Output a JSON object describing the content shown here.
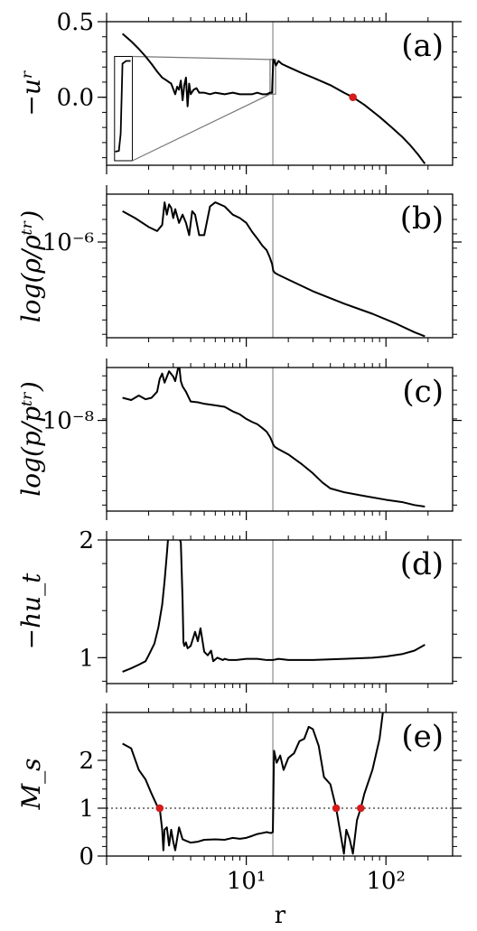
{
  "colors": {
    "line": "#000000",
    "vline": "#a8a8a8",
    "marker": "#d41c1c",
    "dotted": "#6e6e6e",
    "zoom": "#777777"
  },
  "xaxis": {
    "label": "r",
    "scale": "log",
    "range": [
      1.0,
      300.0
    ],
    "tick_labels": [
      "10¹",
      "10²"
    ]
  },
  "chart_data": [
    {
      "type": "line",
      "panel_label": "(a)",
      "ylabel": "−uʳ",
      "xlim": [
        1.0,
        300.0
      ],
      "ylim": [
        -0.45,
        0.5
      ],
      "x_scale": "log",
      "y_ticks": [
        0.5,
        0.0
      ],
      "y_tick_labels": [
        "0.5",
        "0.0"
      ],
      "vline_x": 15.5,
      "markers": [
        {
          "x": 58,
          "y": 0.0
        }
      ],
      "inset_box": {
        "x_range": [
          1.14,
          1.53
        ],
        "y_range": [
          -0.42,
          0.27
        ]
      },
      "inset_target": {
        "x_range": [
          14.8,
          16.2
        ],
        "y_range": [
          0.02,
          0.25
        ]
      },
      "series": [
        {
          "x": [
            1.3,
            1.5,
            1.7,
            1.9,
            2.1,
            2.3,
            2.5,
            2.7,
            2.9,
            3.1,
            3.2,
            3.3,
            3.4,
            3.5,
            3.6,
            3.7,
            3.8,
            3.9,
            4.0,
            4.2,
            4.4,
            4.6,
            5,
            5.5,
            6,
            7,
            8,
            9,
            10,
            11,
            12,
            13,
            14,
            14.8,
            15.3,
            15.6,
            15.9,
            16.3,
            17,
            18,
            20,
            25,
            30,
            40,
            50,
            58,
            70,
            90,
            110,
            130,
            150,
            170,
            190
          ],
          "y": [
            0.42,
            0.37,
            0.32,
            0.27,
            0.22,
            0.17,
            0.13,
            0.11,
            0.09,
            0.02,
            0.07,
            0.05,
            0.11,
            -0.02,
            0.08,
            0.13,
            -0.06,
            0.09,
            0.02,
            0.05,
            0.06,
            0.03,
            0.03,
            0.02,
            0.03,
            0.02,
            0.03,
            0.02,
            0.02,
            0.02,
            0.03,
            0.02,
            0.02,
            0.03,
            0.03,
            0.25,
            0.24,
            0.21,
            0.24,
            0.22,
            0.2,
            0.16,
            0.13,
            0.08,
            0.03,
            0.0,
            -0.05,
            -0.13,
            -0.2,
            -0.26,
            -0.32,
            -0.38,
            -0.44
          ]
        }
      ]
    },
    {
      "type": "line",
      "panel_label": "(b)",
      "ylabel": "log(ρ/ρᵗʳ)",
      "xlim": [
        1.0,
        300.0
      ],
      "ylim": [
        -7.4,
        -5.3
      ],
      "x_scale": "log",
      "y_ticks": [
        -6
      ],
      "y_tick_labels": [
        "10⁻⁶"
      ],
      "vline_x": 15.5,
      "series": [
        {
          "x": [
            1.3,
            1.6,
            2.0,
            2.3,
            2.5,
            2.6,
            2.7,
            2.8,
            2.9,
            3.0,
            3.1,
            3.3,
            3.5,
            3.7,
            3.9,
            4.1,
            4.3,
            4.6,
            5,
            5.5,
            6,
            7,
            8,
            9,
            10,
            11,
            12,
            13,
            14,
            14.7,
            15.3,
            15.6,
            16,
            17,
            20,
            30,
            50,
            80,
            120,
            160,
            190
          ],
          "y": [
            -5.55,
            -5.65,
            -5.78,
            -5.84,
            -5.75,
            -5.42,
            -5.6,
            -5.45,
            -5.5,
            -5.65,
            -5.52,
            -5.72,
            -5.6,
            -5.72,
            -5.9,
            -5.55,
            -5.6,
            -5.9,
            -5.9,
            -5.48,
            -5.42,
            -5.48,
            -5.6,
            -5.65,
            -5.72,
            -5.85,
            -5.95,
            -6.05,
            -6.12,
            -6.22,
            -6.32,
            -6.42,
            -6.45,
            -6.48,
            -6.55,
            -6.72,
            -6.9,
            -7.05,
            -7.2,
            -7.32,
            -7.38
          ]
        }
      ]
    },
    {
      "type": "line",
      "panel_label": "(c)",
      "ylabel": "log(p/pᵗʳ)",
      "xlim": [
        1.0,
        300.0
      ],
      "ylim": [
        -9.2,
        -7.3
      ],
      "x_scale": "log",
      "y_ticks": [
        -8
      ],
      "y_tick_labels": [
        "10⁻⁸"
      ],
      "vline_x": 15.5,
      "series": [
        {
          "x": [
            1.3,
            1.5,
            1.7,
            1.9,
            2.1,
            2.3,
            2.4,
            2.5,
            2.6,
            2.8,
            3.0,
            3.1,
            3.3,
            3.4,
            3.5,
            3.7,
            4.0,
            4.5,
            5,
            6,
            7,
            8,
            9,
            10,
            11,
            12,
            13,
            14,
            14.8,
            15.3,
            15.6,
            16,
            17,
            20,
            25,
            30,
            35,
            40,
            50,
            70,
            100,
            130,
            160,
            190
          ],
          "y": [
            -7.7,
            -7.73,
            -7.67,
            -7.72,
            -7.7,
            -7.62,
            -7.45,
            -7.38,
            -7.5,
            -7.35,
            -7.42,
            -7.48,
            -7.25,
            -7.48,
            -7.55,
            -7.62,
            -7.75,
            -7.76,
            -7.78,
            -7.8,
            -7.82,
            -7.88,
            -7.92,
            -7.98,
            -8.02,
            -8.05,
            -8.1,
            -8.15,
            -8.22,
            -8.28,
            -8.32,
            -8.35,
            -8.38,
            -8.45,
            -8.58,
            -8.7,
            -8.82,
            -8.9,
            -8.95,
            -9.0,
            -9.05,
            -9.08,
            -9.12,
            -9.14
          ]
        }
      ]
    },
    {
      "type": "line",
      "panel_label": "(d)",
      "ylabel": "−hu_t",
      "xlim": [
        1.0,
        300.0
      ],
      "ylim": [
        0.78,
        2.0
      ],
      "x_scale": "log",
      "y_ticks": [
        2,
        1
      ],
      "y_tick_labels": [
        "2",
        "1"
      ],
      "vline_x": 15.5,
      "series": [
        {
          "x": [
            1.3,
            1.5,
            1.7,
            1.9,
            2.0,
            2.2,
            2.35,
            2.5,
            2.6,
            2.7,
            2.75,
            2.8,
            3.3,
            3.4,
            3.5,
            3.55,
            3.6,
            3.7,
            3.8,
            4.0,
            4.3,
            4.5,
            4.7,
            5,
            5.3,
            5.6,
            5.8,
            6.2,
            6.8,
            7,
            7.5,
            8.5,
            10,
            12,
            14,
            15.5,
            17,
            20,
            30,
            50,
            80,
            100,
            130,
            160,
            190
          ],
          "y": [
            0.88,
            0.91,
            0.94,
            0.97,
            1.02,
            1.12,
            1.26,
            1.45,
            1.65,
            1.88,
            2.0,
            2.02,
            2.02,
            1.98,
            1.48,
            1.13,
            1.1,
            1.13,
            1.08,
            1.1,
            1.22,
            1.14,
            1.25,
            1.05,
            1.02,
            1.06,
            0.97,
            1.0,
            0.98,
            0.99,
            0.98,
            0.98,
            0.99,
            0.99,
            0.98,
            0.98,
            0.99,
            0.98,
            0.98,
            0.99,
            1.0,
            1.01,
            1.03,
            1.06,
            1.11
          ]
        }
      ]
    },
    {
      "type": "line",
      "panel_label": "(e)",
      "ylabel": "M_s",
      "xlim": [
        1.0,
        300.0
      ],
      "ylim": [
        0.0,
        3.0
      ],
      "x_scale": "log",
      "y_ticks": [
        2,
        1,
        0
      ],
      "y_tick_labels": [
        "2",
        "1",
        "0"
      ],
      "vline_x": 15.5,
      "hline_y": 1.0,
      "markers": [
        {
          "x": 2.4,
          "y": 1.0
        },
        {
          "x": 44,
          "y": 1.0
        },
        {
          "x": 66,
          "y": 1.0
        }
      ],
      "series": [
        {
          "x": [
            1.3,
            1.5,
            1.7,
            1.9,
            2.1,
            2.3,
            2.4,
            2.5,
            2.55,
            2.6,
            2.7,
            2.8,
            2.9,
            3.0,
            3.1,
            3.3,
            3.5,
            3.7,
            4,
            4.5,
            5,
            6,
            7,
            8,
            9,
            10,
            11,
            12,
            13,
            14,
            15,
            15.5,
            15.8,
            16.5,
            17.5,
            18.5,
            20,
            22,
            24,
            26,
            28,
            30,
            33,
            36,
            40,
            44,
            48,
            50,
            52,
            55,
            58,
            62,
            66,
            70,
            80,
            90,
            95
          ],
          "y": [
            2.35,
            2.25,
            1.8,
            1.6,
            1.3,
            1.05,
            1.0,
            0.55,
            0.12,
            0.55,
            0.6,
            0.22,
            0.55,
            0.3,
            0.12,
            0.6,
            0.35,
            0.32,
            0.28,
            0.3,
            0.34,
            0.35,
            0.34,
            0.38,
            0.36,
            0.38,
            0.42,
            0.46,
            0.48,
            0.5,
            0.48,
            0.5,
            2.2,
            1.95,
            2.1,
            1.8,
            2.05,
            2.15,
            2.4,
            2.45,
            2.7,
            2.65,
            2.3,
            1.65,
            1.5,
            1.0,
            0.35,
            0.05,
            0.55,
            0.35,
            0.05,
            0.75,
            1.0,
            1.3,
            1.8,
            2.45,
            3.0
          ]
        }
      ]
    }
  ]
}
